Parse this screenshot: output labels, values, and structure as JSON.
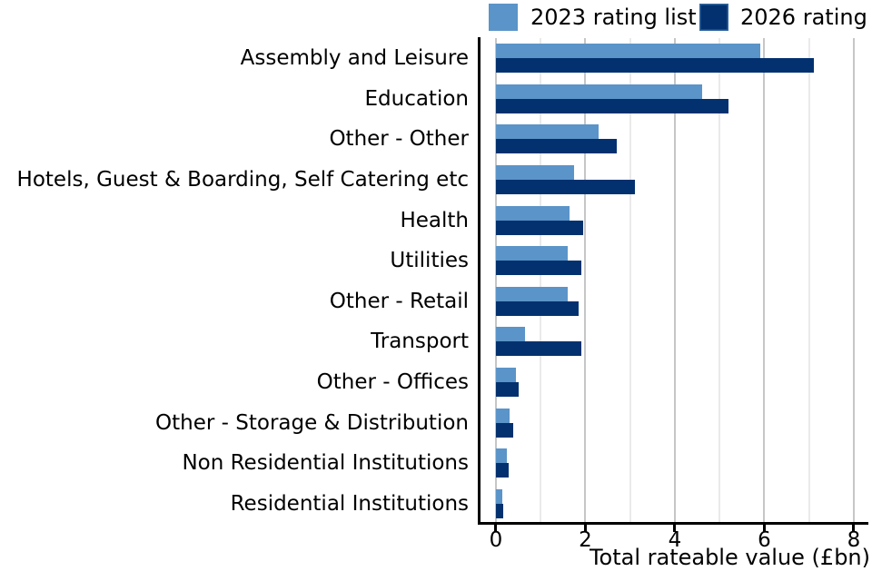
{
  "chart_data": {
    "type": "bar",
    "orientation": "horizontal",
    "title": "",
    "xlabel": "Total rateable value (£bn)",
    "ylabel": "",
    "categories": [
      "Assembly and Leisure",
      "Education",
      "Other - Other",
      "Hotels, Guest & Boarding, Self Catering etc",
      "Health",
      "Utilities",
      "Other - Retail",
      "Transport",
      "Other - Offices",
      "Other - Storage & Distribution",
      "Non Residential Institutions",
      "Residential Institutions"
    ],
    "series": [
      {
        "name": "2023 rating list",
        "color": "#5B94C8",
        "values": [
          5.9,
          4.6,
          2.3,
          1.75,
          1.65,
          1.6,
          1.6,
          0.65,
          0.45,
          0.3,
          0.25,
          0.14
        ]
      },
      {
        "name": "2026 rating",
        "color": "#03316F",
        "values": [
          7.1,
          5.2,
          2.7,
          3.1,
          1.95,
          1.9,
          1.85,
          1.9,
          0.5,
          0.38,
          0.28,
          0.17
        ]
      }
    ],
    "x_ticks": [
      0,
      2,
      4,
      6,
      8
    ],
    "xlim": [
      -0.365,
      8.305
    ],
    "grid": {
      "lines_every": 1,
      "major_every": 2,
      "minor_color": "#EAEAEA",
      "major_color": "#C6C6C6"
    },
    "legend_position": "top-right",
    "axis_color": "#000000"
  }
}
